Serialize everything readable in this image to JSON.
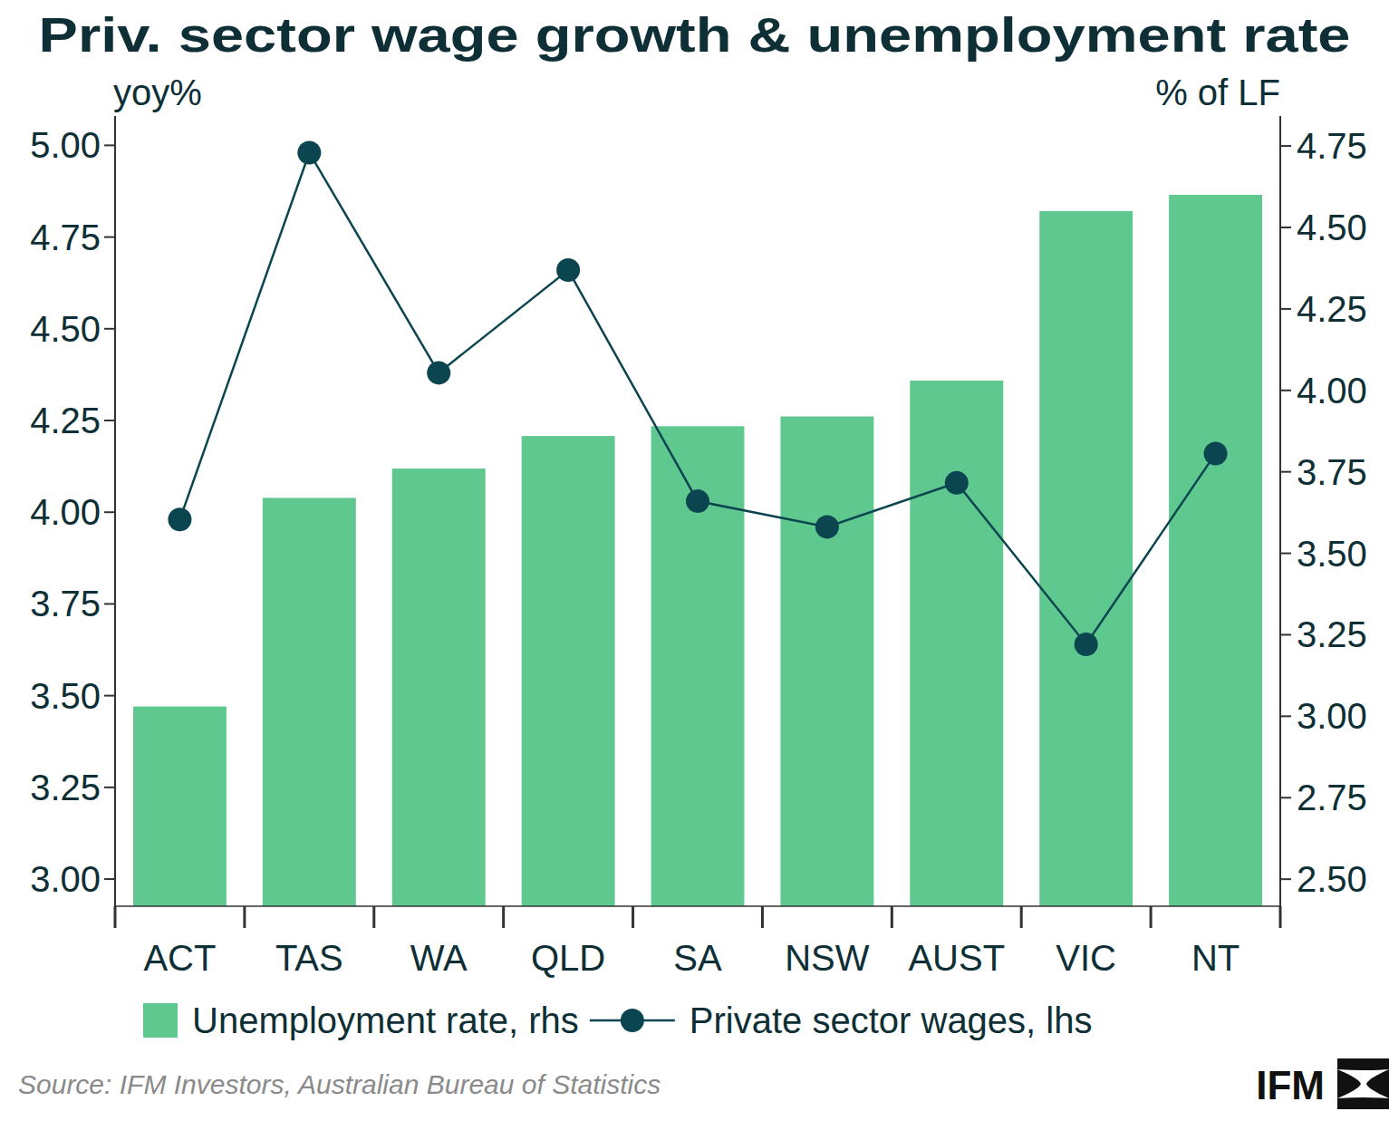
{
  "chart_data": {
    "type": "bar",
    "title": "Priv. sector wage growth & unemployment rate",
    "y_label": "yoy%",
    "y2_label": "% of LF",
    "categories": [
      "ACT",
      "TAS",
      "WA",
      "QLD",
      "SA",
      "NSW",
      "AUST",
      "VIC",
      "NT"
    ],
    "series": [
      {
        "name": "Unemployment rate, rhs",
        "type": "bar",
        "axis": "y2",
        "color": "#5ec88f",
        "values": [
          3.03,
          3.67,
          3.76,
          3.86,
          3.89,
          3.92,
          4.03,
          4.55,
          4.6
        ]
      },
      {
        "name": "Private sector wages, lhs",
        "type": "line",
        "color": "#0b4650",
        "marker": "circle",
        "values": [
          3.98,
          4.98,
          4.38,
          4.66,
          4.03,
          3.96,
          4.08,
          3.64,
          4.16
        ]
      }
    ],
    "ylim": [
      2.926,
      5.08
    ],
    "yticks": [
      {
        "value": 3,
        "label": "3.00"
      },
      {
        "value": 3.25,
        "label": "3.25"
      },
      {
        "value": 3.5,
        "label": "3.50"
      },
      {
        "value": 3.75,
        "label": "3.75"
      },
      {
        "value": 4,
        "label": "4.00"
      },
      {
        "value": 4.25,
        "label": "4.25"
      },
      {
        "value": 4.5,
        "label": "4.50"
      },
      {
        "value": 4.75,
        "label": "4.75"
      },
      {
        "value": 5,
        "label": "5.00"
      }
    ],
    "y2lim": [
      2.417,
      4.842
    ],
    "y2ticks": [
      {
        "value": 2.5,
        "label": "2.50"
      },
      {
        "value": 2.75,
        "label": "2.75"
      },
      {
        "value": 3,
        "label": "3.00"
      },
      {
        "value": 3.25,
        "label": "3.25"
      },
      {
        "value": 3.5,
        "label": "3.50"
      },
      {
        "value": 3.75,
        "label": "3.75"
      },
      {
        "value": 4,
        "label": "4.00"
      },
      {
        "value": 4.25,
        "label": "4.25"
      },
      {
        "value": 4.5,
        "label": "4.50"
      },
      {
        "value": 4.75,
        "label": "4.75"
      }
    ],
    "grid": false,
    "legend": "bottom"
  },
  "source": "Source: IFM Investors, Australian Bureau of Statistics",
  "logo": "IFM"
}
